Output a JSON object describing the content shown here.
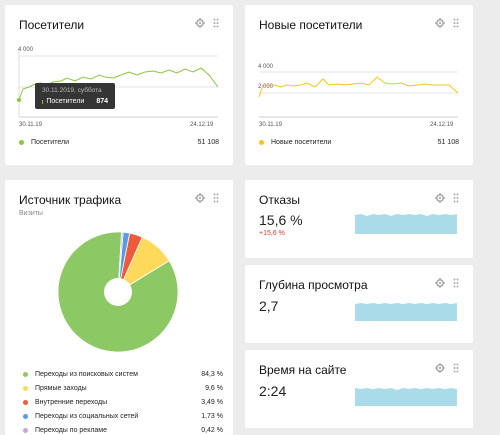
{
  "visitors": {
    "title": "Посетители",
    "y_tick": "4 000",
    "x_start": "30.11.19",
    "x_end": "24.12.19",
    "legend": "Посетители",
    "total": "51 108",
    "color": "#8cc63f",
    "tooltip": {
      "date": "30.11.2019, суббота",
      "label": "Посетители",
      "value": "874"
    }
  },
  "new_visitors": {
    "title": "Новые посетители",
    "y_tick_top": "4 000",
    "y_tick_bottom": "2 000",
    "x_start": "30.11.19",
    "x_end": "24.12.19",
    "legend": "Новые посетители",
    "total": "51 108",
    "color": "#f5c518"
  },
  "traffic": {
    "title": "Источник трафика",
    "subtitle": "Визиты",
    "chart_data": {
      "type": "pie",
      "categories": [
        "Переходы из поисковых систем",
        "Прямые заходы",
        "Внутренние переходы",
        "Переходы из социальных сетей",
        "Переходы по рекламе"
      ],
      "values": [
        84.3,
        9.6,
        3.49,
        1.73,
        0.42
      ],
      "colors": [
        "#8cc965",
        "#ffd95c",
        "#ef5a3a",
        "#5b9be6",
        "#c9a2e0"
      ],
      "labels": [
        "84,3 %",
        "9,6 %",
        "3,49 %",
        "1,73 %",
        "0,42 %"
      ]
    }
  },
  "bounce": {
    "title": "Отказы",
    "value": "15,6 %",
    "delta": "+15,6 %"
  },
  "depth": {
    "title": "Глубина просмотра",
    "value": "2,7"
  },
  "time": {
    "title": "Время на сайте",
    "value": "2:24"
  }
}
